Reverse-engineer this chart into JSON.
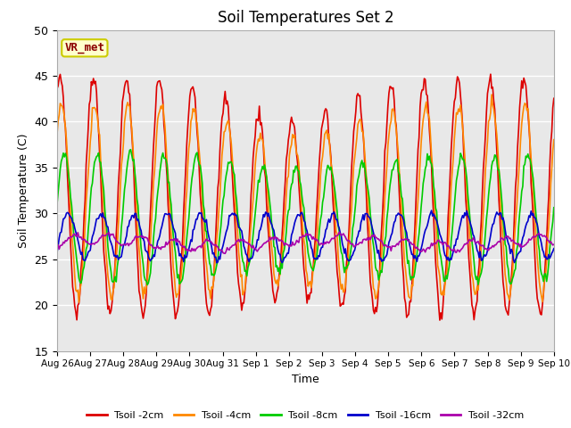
{
  "title": "Soil Temperatures Set 2",
  "xlabel": "Time",
  "ylabel": "Soil Temperature (C)",
  "ylim": [
    15,
    50
  ],
  "annotation": "VR_met",
  "bg_color": "#e8e8e8",
  "plot_bg": "#ebebeb",
  "series": [
    {
      "label": "Tsoil -2cm",
      "color": "#dd0000"
    },
    {
      "label": "Tsoil -4cm",
      "color": "#ff8800"
    },
    {
      "label": "Tsoil -8cm",
      "color": "#00cc00"
    },
    {
      "label": "Tsoil -16cm",
      "color": "#0000cc"
    },
    {
      "label": "Tsoil -32cm",
      "color": "#aa00aa"
    }
  ],
  "xtick_labels": [
    "Aug 26",
    "Aug 27",
    "Aug 28",
    "Aug 29",
    "Aug 30",
    "Aug 31",
    "Sep 1",
    "Sep 2",
    "Sep 3",
    "Sep 4",
    "Sep 5",
    "Sep 6",
    "Sep 7",
    "Sep 8",
    "Sep 9",
    "Sep 10"
  ],
  "num_points": 480,
  "days": 15
}
